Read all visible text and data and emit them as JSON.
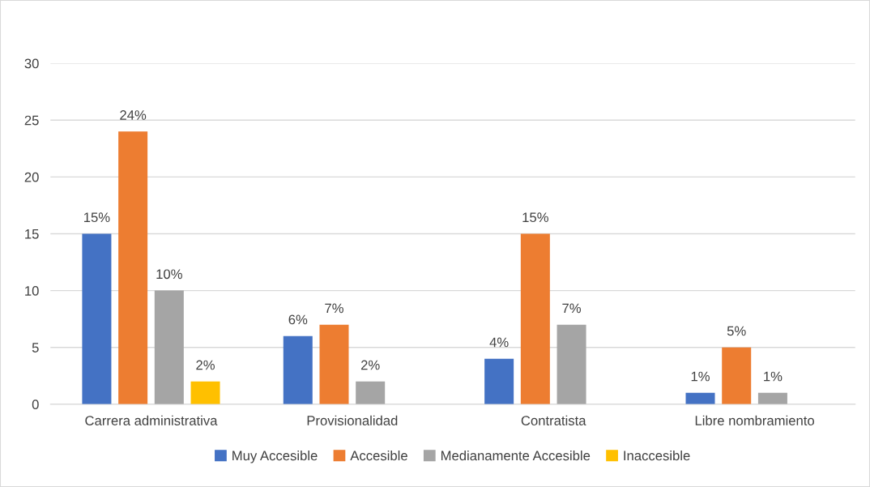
{
  "chart_data": {
    "type": "bar",
    "categories": [
      "Carrera administrativa",
      "Provisionalidad",
      "Contratista",
      "Libre nombramiento"
    ],
    "series": [
      {
        "name": "Muy Accesible",
        "color": "#4472c4",
        "values": [
          15,
          6,
          4,
          1
        ],
        "value_labels": [
          "15%",
          "6%",
          "4%",
          "1%"
        ]
      },
      {
        "name": "Accesible",
        "color": "#ed7d31",
        "values": [
          24,
          7,
          15,
          5
        ],
        "value_labels": [
          "24%",
          "7%",
          "15%",
          "5%"
        ]
      },
      {
        "name": "Medianamente Accesible",
        "color": "#a5a5a5",
        "values": [
          10,
          2,
          7,
          1
        ],
        "value_labels": [
          "10%",
          "2%",
          "7%",
          "1%"
        ]
      },
      {
        "name": "Inaccesible",
        "color": "#ffc000",
        "values": [
          2,
          null,
          null,
          null
        ],
        "value_labels": [
          "2%",
          null,
          null,
          null
        ]
      }
    ],
    "ylim": [
      0,
      30
    ],
    "yticks": [
      0,
      5,
      10,
      15,
      20,
      25,
      30
    ],
    "grid": "y",
    "legend": "bottom"
  }
}
